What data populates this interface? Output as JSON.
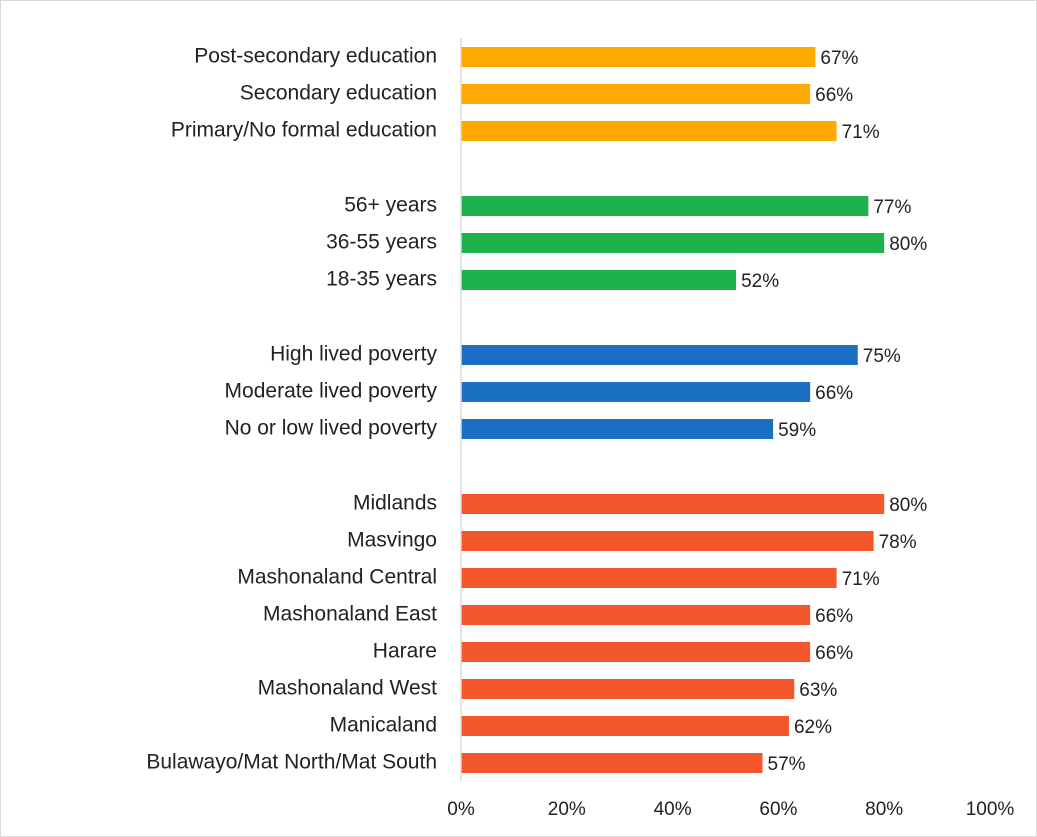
{
  "chart_data": {
    "type": "bar",
    "orientation": "horizontal",
    "groups": [
      {
        "color": "#ffaa00",
        "categories": [
          "Post-secondary education",
          "Secondary education",
          "Primary/No formal education"
        ],
        "values": [
          67,
          66,
          71
        ],
        "value_labels": [
          "67%",
          "66%",
          "71%"
        ]
      },
      {
        "color": "#1fb14c",
        "categories": [
          "56+ years",
          "36-55 years",
          "18-35 years"
        ],
        "values": [
          77,
          80,
          52
        ],
        "value_labels": [
          "77%",
          "80%",
          "52%"
        ]
      },
      {
        "color": "#1a6fc2",
        "categories": [
          "High lived poverty",
          "Moderate lived poverty",
          "No or low lived poverty"
        ],
        "values": [
          75,
          66,
          59
        ],
        "value_labels": [
          "75%",
          "66%",
          "59%"
        ]
      },
      {
        "color": "#f4572b",
        "categories": [
          "Midlands",
          "Masvingo",
          "Mashonaland Central",
          "Mashonaland East",
          "Harare",
          "Mashonaland West",
          "Manicaland",
          "Bulawayo/Mat North/Mat South"
        ],
        "values": [
          80,
          78,
          71,
          66,
          66,
          63,
          62,
          57
        ],
        "value_labels": [
          "80%",
          "78%",
          "71%",
          "66%",
          "66%",
          "63%",
          "62%",
          "57%"
        ]
      }
    ],
    "xlim": [
      0,
      100
    ],
    "xticks": [
      {
        "value": 0,
        "label": "0%"
      },
      {
        "value": 20,
        "label": "20%"
      },
      {
        "value": 40,
        "label": "40%"
      },
      {
        "value": 60,
        "label": "60%"
      },
      {
        "value": 80,
        "label": "80%"
      },
      {
        "value": 100,
        "label": "100%"
      }
    ],
    "grid": false
  }
}
